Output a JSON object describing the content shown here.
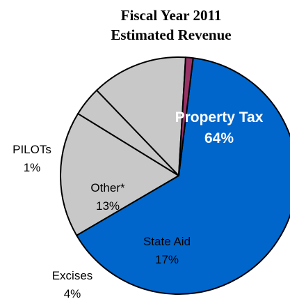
{
  "chart_data": {
    "type": "pie",
    "title": [
      "Fiscal Year 2011",
      "Estimated Revenue"
    ],
    "categories": [
      "Property Tax",
      "State Aid",
      "Excises",
      "Other*",
      "PILOTs"
    ],
    "values": [
      64,
      17,
      4,
      13,
      1
    ],
    "labels": [
      "64%",
      "17%",
      "4%",
      "13%",
      "1%"
    ],
    "colors": [
      "#0066CC",
      "#C8C8C8",
      "#C8C8C8",
      "#C8C8C8",
      "#993366"
    ],
    "legend": "none"
  }
}
